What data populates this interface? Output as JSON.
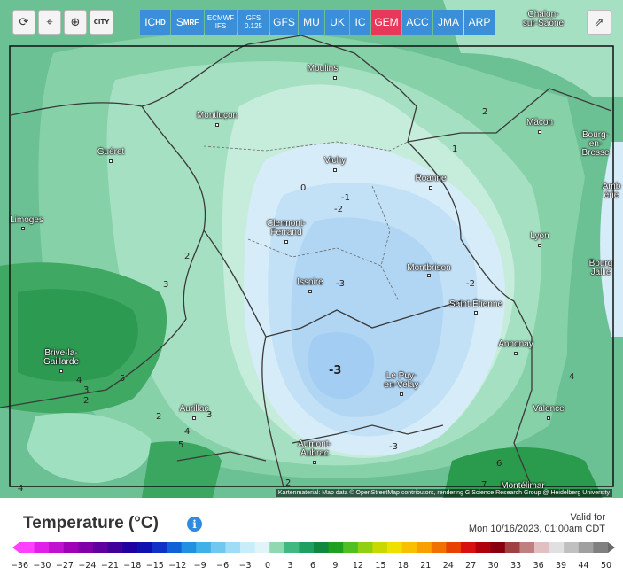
{
  "toolbar": {
    "refresh_icon": "refresh-icon",
    "pin_icon": "location-pin-icon",
    "zoom_icon": "zoom-icon",
    "city_label": "CITY",
    "share_icon": "share-icon"
  },
  "models": [
    {
      "id": "ic",
      "label": "IC",
      "sub": "HD",
      "active": false
    },
    {
      "id": "smrf",
      "label": "S",
      "sub": "MRF",
      "active": false
    },
    {
      "id": "ecmwf",
      "label": "ECMWF",
      "line2": "IFS",
      "active": false
    },
    {
      "id": "gfs0125",
      "label": "GFS",
      "line2": "0.125",
      "active": false
    },
    {
      "id": "gfs",
      "label": "GFS",
      "active": false
    },
    {
      "id": "mu",
      "label": "MU",
      "active": false
    },
    {
      "id": "uk",
      "label": "UK",
      "active": false
    },
    {
      "id": "ic2",
      "label": "IC",
      "active": false
    },
    {
      "id": "gem",
      "label": "GEM",
      "active": true
    },
    {
      "id": "acc",
      "label": "ACC",
      "active": false
    },
    {
      "id": "jma",
      "label": "JMA",
      "active": false
    },
    {
      "id": "arp",
      "label": "ARP",
      "active": false
    }
  ],
  "cities": [
    {
      "name": "Chalon-\nsur-Saône"
    },
    {
      "name": "Moulins"
    },
    {
      "name": "Montluçon"
    },
    {
      "name": "Mâcon"
    },
    {
      "name": "Bourg-\nen-Bresse"
    },
    {
      "name": "Guéret"
    },
    {
      "name": "Vichy"
    },
    {
      "name": "Roanne"
    },
    {
      "name": "Amb\nérie"
    },
    {
      "name": "Limoges"
    },
    {
      "name": "Clermont-\nFerrand"
    },
    {
      "name": "Lyon"
    },
    {
      "name": "Montbrison"
    },
    {
      "name": "Bourg\nJallie"
    },
    {
      "name": "Issoire"
    },
    {
      "name": "Saint-Étienne"
    },
    {
      "name": "Brive-la-\nGaillarde"
    },
    {
      "name": "Annonay"
    },
    {
      "name": "Le Puy-\nen-Velay"
    },
    {
      "name": "Aurillac"
    },
    {
      "name": "Valence"
    },
    {
      "name": "Aumont-\nAubrac"
    },
    {
      "name": "Montélimar"
    }
  ],
  "contour_labels": [
    "2",
    "1",
    "0",
    "-1",
    "-2",
    "-3",
    "-2",
    "2",
    "3",
    "-3",
    "4",
    "5",
    "3",
    "2",
    "4",
    "2",
    "5",
    "3",
    "-3",
    "4",
    "6",
    "2",
    "4",
    "7"
  ],
  "attribution": "Kartenmaterial: Map data © OpenStreetMap contributors, rendering GIScience Research Group @ Heidelberg University",
  "legend": {
    "title": "Temperature (°C)",
    "info_icon": "info-icon",
    "valid_label": "Valid for",
    "valid_time": "Mon 10/16/2023, 01:00am CDT",
    "ticks": [
      "-36",
      "-30",
      "-27",
      "-24",
      "-21",
      "-18",
      "-15",
      "-12",
      "-9",
      "-6",
      "-3",
      "0",
      "3",
      "6",
      "9",
      "12",
      "15",
      "18",
      "21",
      "24",
      "27",
      "30",
      "33",
      "36",
      "39",
      "44",
      "50"
    ],
    "colors": [
      "#ff40ff",
      "#e020e8",
      "#c010d0",
      "#a000b8",
      "#8000a8",
      "#6000a0",
      "#40009a",
      "#2000a0",
      "#1010b0",
      "#1030c8",
      "#1060d8",
      "#2090e0",
      "#40b0e8",
      "#70c8f0",
      "#a0dcf5",
      "#c8ecfa",
      "#e0f4fa",
      "#90d8b0",
      "#40b880",
      "#20a060",
      "#108840",
      "#20a020",
      "#50c020",
      "#90d010",
      "#c8d800",
      "#f0e000",
      "#f8c000",
      "#f8a000",
      "#f07000",
      "#e84000",
      "#d81010",
      "#b00010",
      "#880010",
      "#a04040",
      "#c08080",
      "#e0c0c0",
      "#e0e0e0",
      "#c0c0c0",
      "#a0a0a0",
      "#808080"
    ]
  }
}
